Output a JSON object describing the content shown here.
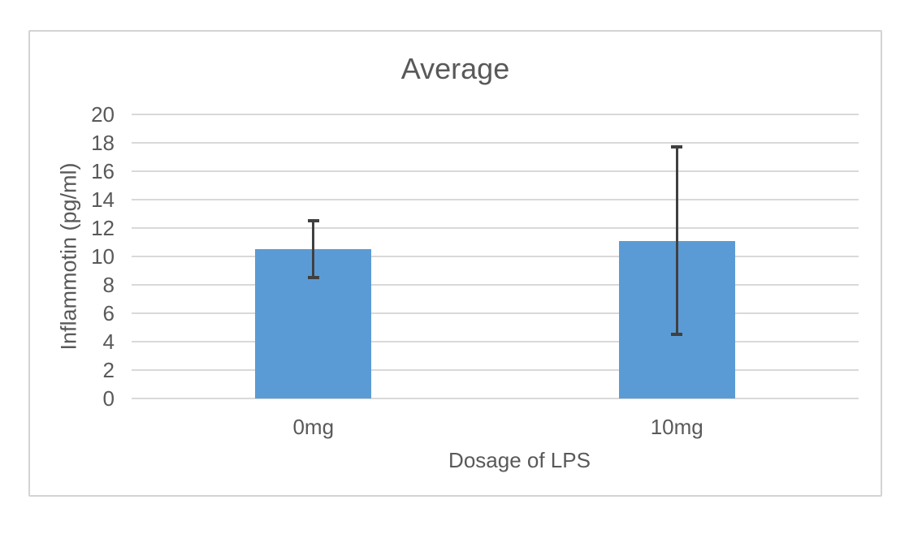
{
  "chart_data": {
    "type": "bar",
    "title": "Average",
    "xlabel": "Dosage of LPS",
    "ylabel": "Inflammotin (pg/ml)",
    "categories": [
      "0mg",
      "10mg"
    ],
    "series": [
      {
        "name": "Average",
        "values": [
          10.5,
          11.1
        ],
        "error_low": [
          8.5,
          4.5
        ],
        "error_high": [
          12.5,
          17.7
        ]
      }
    ],
    "ylim": [
      0,
      20
    ],
    "yticks": [
      0,
      2,
      4,
      6,
      8,
      10,
      12,
      14,
      16,
      18,
      20
    ],
    "grid": true,
    "legend_position": "none",
    "colors": {
      "bar": "#5B9BD5",
      "error_bar": "#404040",
      "gridline": "#D9D9D9",
      "text": "#595959",
      "chart_border": "#D3D3D3",
      "background": "#FFFFFF"
    }
  }
}
